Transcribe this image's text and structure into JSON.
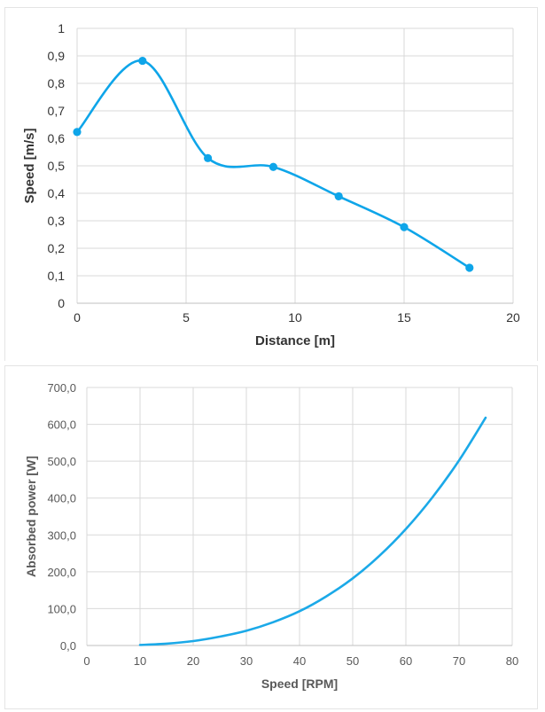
{
  "chart_data": [
    {
      "type": "line",
      "smooth": true,
      "markers": true,
      "xlabel": "Distance [m]",
      "ylabel": "Speed [m/s]",
      "xlim": [
        0,
        20
      ],
      "ylim": [
        0,
        1
      ],
      "x_ticks": [
        "0",
        "5",
        "10",
        "15",
        "20"
      ],
      "y_ticks": [
        "0",
        "0,1",
        "0,2",
        "0,3",
        "0,4",
        "0,5",
        "0,6",
        "0,7",
        "0,8",
        "0,9",
        "1"
      ],
      "grid": true,
      "color": "#0ea5e9",
      "series": [
        {
          "x": [
            0,
            3,
            6,
            9,
            12,
            15,
            18
          ],
          "values": [
            0.623,
            0.882,
            0.528,
            0.496,
            0.389,
            0.277,
            0.129
          ]
        }
      ]
    },
    {
      "type": "line",
      "smooth": true,
      "markers": false,
      "xlabel": "Speed [RPM]",
      "ylabel": "Absorbed power [W]",
      "xlim": [
        0,
        80
      ],
      "ylim": [
        0,
        700
      ],
      "x_ticks": [
        "0",
        "10",
        "20",
        "30",
        "40",
        "50",
        "60",
        "70",
        "80"
      ],
      "y_ticks": [
        "0,0",
        "100,0",
        "200,0",
        "300,0",
        "400,0",
        "500,0",
        "600,0",
        "700,0"
      ],
      "grid": true,
      "color": "#1ba9e8",
      "series": [
        {
          "x": [
            10,
            15,
            20,
            25,
            30,
            35,
            40,
            45,
            50,
            55,
            60,
            65,
            70,
            75
          ],
          "values": [
            1.5,
            5,
            12,
            24,
            40,
            63,
            93,
            133,
            182,
            243,
            316,
            402,
            502,
            618
          ]
        }
      ]
    }
  ]
}
